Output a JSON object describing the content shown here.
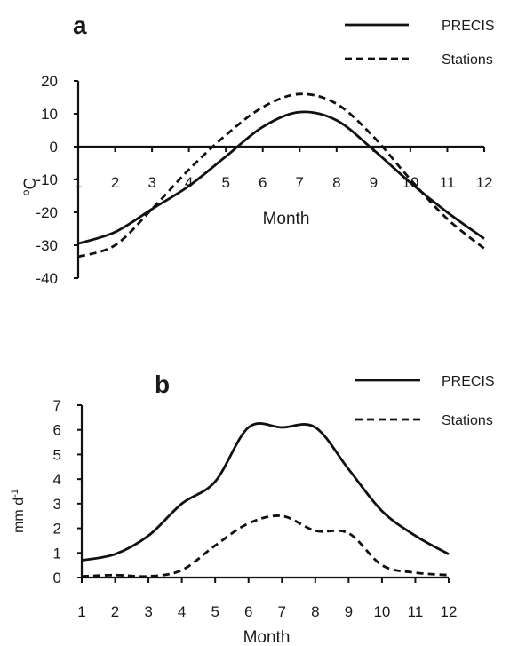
{
  "chart_data": [
    {
      "type": "line",
      "panel_label": "a",
      "xlabel": "Month",
      "ylabel": "°C",
      "ylabel_parts": [
        "o",
        "C"
      ],
      "x": [
        1,
        2,
        3,
        4,
        5,
        6,
        7,
        8,
        9,
        10,
        11,
        12
      ],
      "x_ticks": [
        1,
        2,
        3,
        4,
        5,
        6,
        7,
        8,
        9,
        10,
        11,
        12
      ],
      "y_ticks": [
        20,
        10,
        0,
        -10,
        -20,
        -30,
        -40
      ],
      "xlim": [
        1,
        12
      ],
      "ylim": [
        -40,
        20
      ],
      "grid": false,
      "legend_position": "top-right",
      "series": [
        {
          "name": "PRECIS",
          "style": "solid",
          "values": [
            -29.5,
            -26,
            -19,
            -12,
            -3,
            6,
            10.5,
            8,
            -1,
            -11,
            -20,
            -28
          ]
        },
        {
          "name": "Stations",
          "style": "dashed",
          "values": [
            -33.5,
            -30,
            -19,
            -7,
            3.5,
            12,
            16,
            13,
            3,
            -10,
            -22,
            -31
          ]
        }
      ]
    },
    {
      "type": "line",
      "panel_label": "b",
      "xlabel": "Month",
      "ylabel": "mm d-1",
      "ylabel_parts": [
        "mm d",
        "-1"
      ],
      "x": [
        1,
        2,
        3,
        4,
        5,
        6,
        7,
        8,
        9,
        10,
        11,
        12
      ],
      "x_ticks": [
        1,
        2,
        3,
        4,
        5,
        6,
        7,
        8,
        9,
        10,
        11,
        12
      ],
      "y_ticks": [
        0,
        1,
        2,
        3,
        4,
        5,
        6,
        7
      ],
      "xlim": [
        1,
        12
      ],
      "ylim": [
        0,
        7
      ],
      "grid": false,
      "legend_position": "top-right",
      "series": [
        {
          "name": "PRECIS",
          "style": "solid",
          "values": [
            0.7,
            0.95,
            1.7,
            3.0,
            3.9,
            6.1,
            6.1,
            6.1,
            4.4,
            2.7,
            1.7,
            0.95
          ]
        },
        {
          "name": "Stations",
          "style": "dashed",
          "values": [
            0.05,
            0.1,
            0.05,
            0.3,
            1.3,
            2.2,
            2.5,
            1.9,
            1.8,
            0.5,
            0.2,
            0.1
          ]
        }
      ]
    }
  ]
}
